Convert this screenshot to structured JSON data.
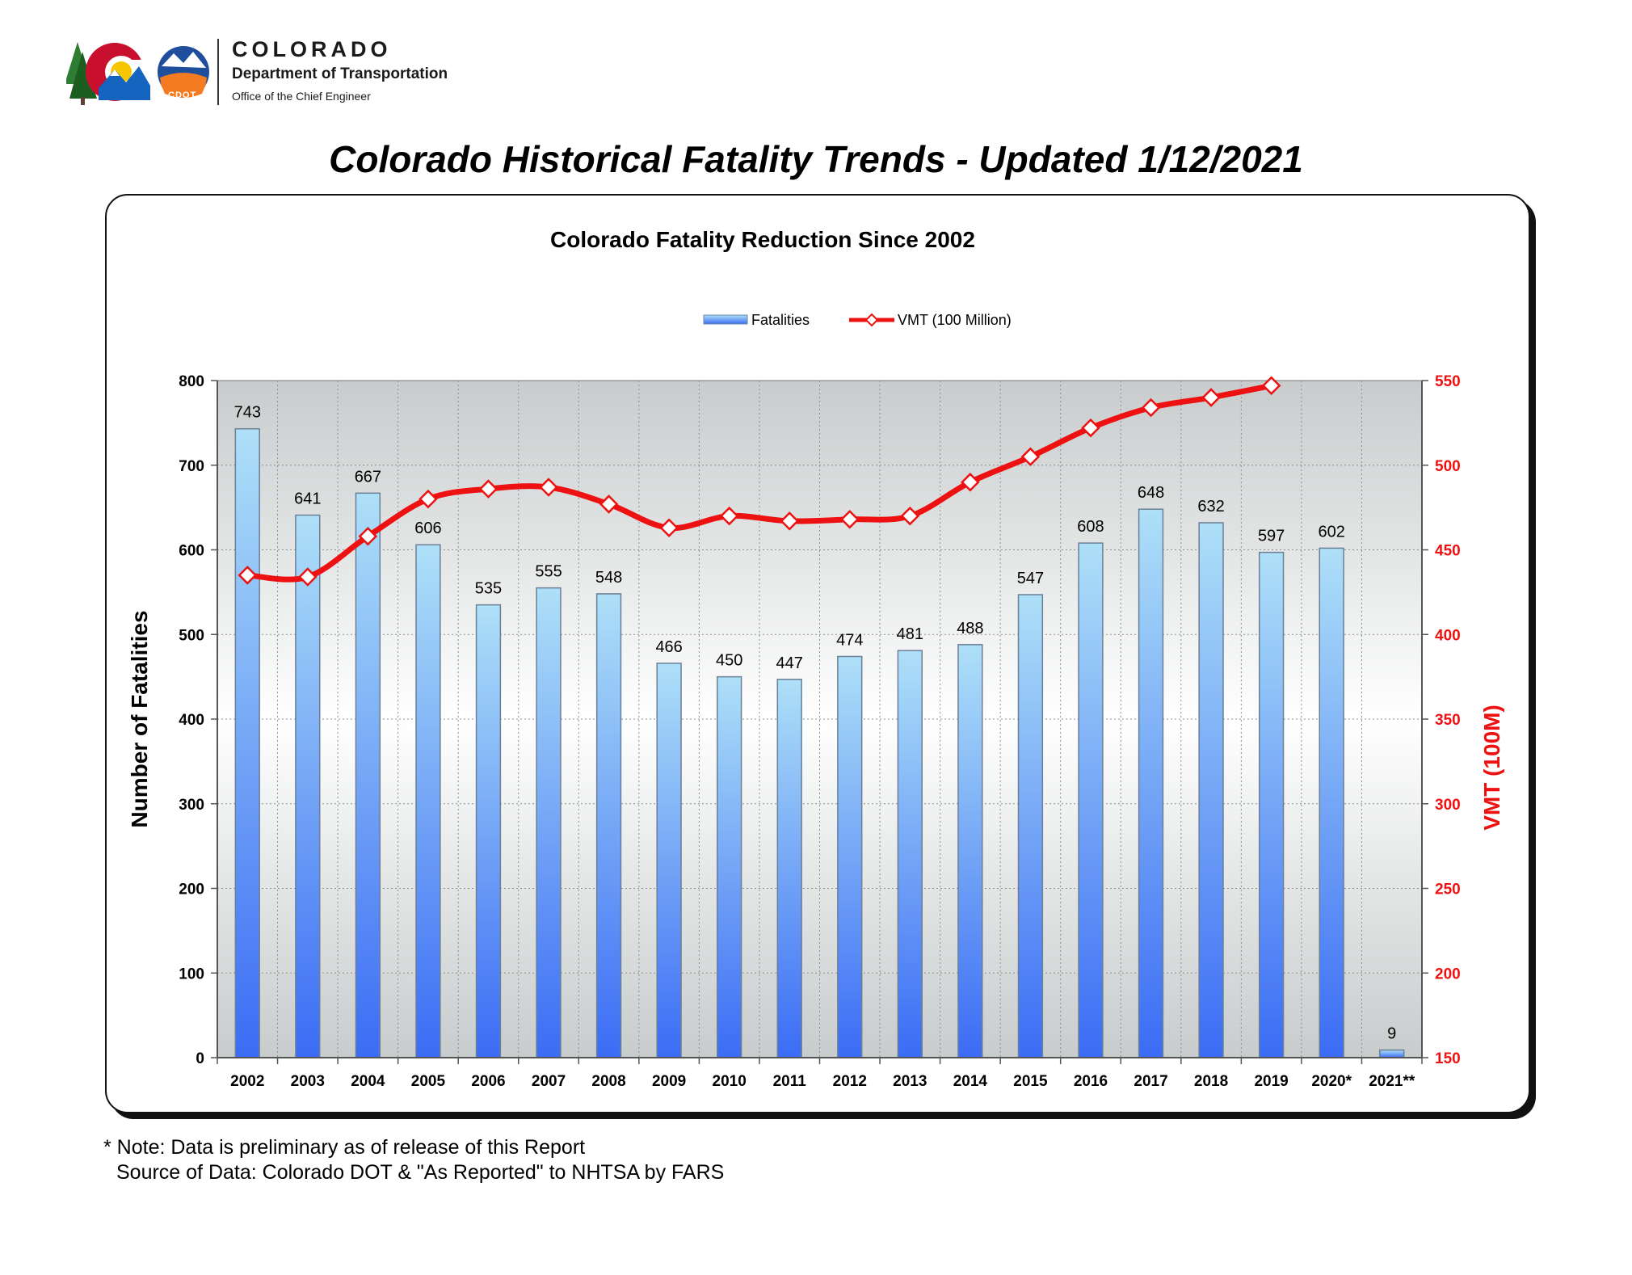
{
  "header": {
    "org_state": "COLORADO",
    "org_dept": "Department of Transportation",
    "org_office": "Office of the Chief Engineer",
    "badge_text": "CDOT",
    "page_title": "Colorado Historical Fatality Trends - Updated 1/12/2021"
  },
  "colors": {
    "bar_top": "#aee0f8",
    "bar_bottom": "#3b6cf5",
    "line": "#ee1111",
    "plot_bg_edge": "#c8cccc",
    "plot_bg_center": "#ffffff",
    "right_axis": "#ee1111"
  },
  "chart_data": {
    "type": "bar",
    "title": "Colorado Fatality Reduction Since 2002",
    "categories": [
      "2002",
      "2003",
      "2004",
      "2005",
      "2006",
      "2007",
      "2008",
      "2009",
      "2010",
      "2011",
      "2012",
      "2013",
      "2014",
      "2015",
      "2016",
      "2017",
      "2018",
      "2019",
      "2020*",
      "2021**"
    ],
    "series": [
      {
        "name": "Fatalities",
        "type": "bar",
        "axis": "left",
        "values": [
          743,
          641,
          667,
          606,
          535,
          555,
          548,
          466,
          450,
          447,
          474,
          481,
          488,
          547,
          608,
          648,
          632,
          597,
          602,
          9
        ],
        "labels": [
          "743",
          "641",
          "667",
          "606",
          "535",
          "555",
          "548",
          "466",
          "450",
          "447",
          "474",
          "481",
          "488",
          "547",
          "608",
          "648",
          "632",
          "597",
          "602",
          "9"
        ]
      },
      {
        "name": "VMT (100 Million)",
        "type": "line",
        "axis": "right",
        "values": [
          435,
          434,
          458,
          480,
          486,
          487,
          477,
          463,
          470,
          467,
          468,
          470,
          490,
          505,
          522,
          534,
          540,
          547,
          null,
          null
        ]
      }
    ],
    "ylabel": "Number of Fatalities",
    "ylim": [
      0,
      800
    ],
    "yticks": [
      "0",
      "100",
      "200",
      "300",
      "400",
      "500",
      "600",
      "700",
      "800"
    ],
    "y2label": "VMT (100M)",
    "y2lim": [
      150,
      550
    ],
    "y2ticks": [
      "150",
      "200",
      "250",
      "300",
      "350",
      "400",
      "450",
      "500",
      "550"
    ],
    "grid": true,
    "legend_position": "top-center"
  },
  "footer": {
    "note": "* Note: Data is preliminary as of release of this Report",
    "source": "Source of Data: Colorado DOT & \"As Reported\" to NHTSA by FARS"
  }
}
